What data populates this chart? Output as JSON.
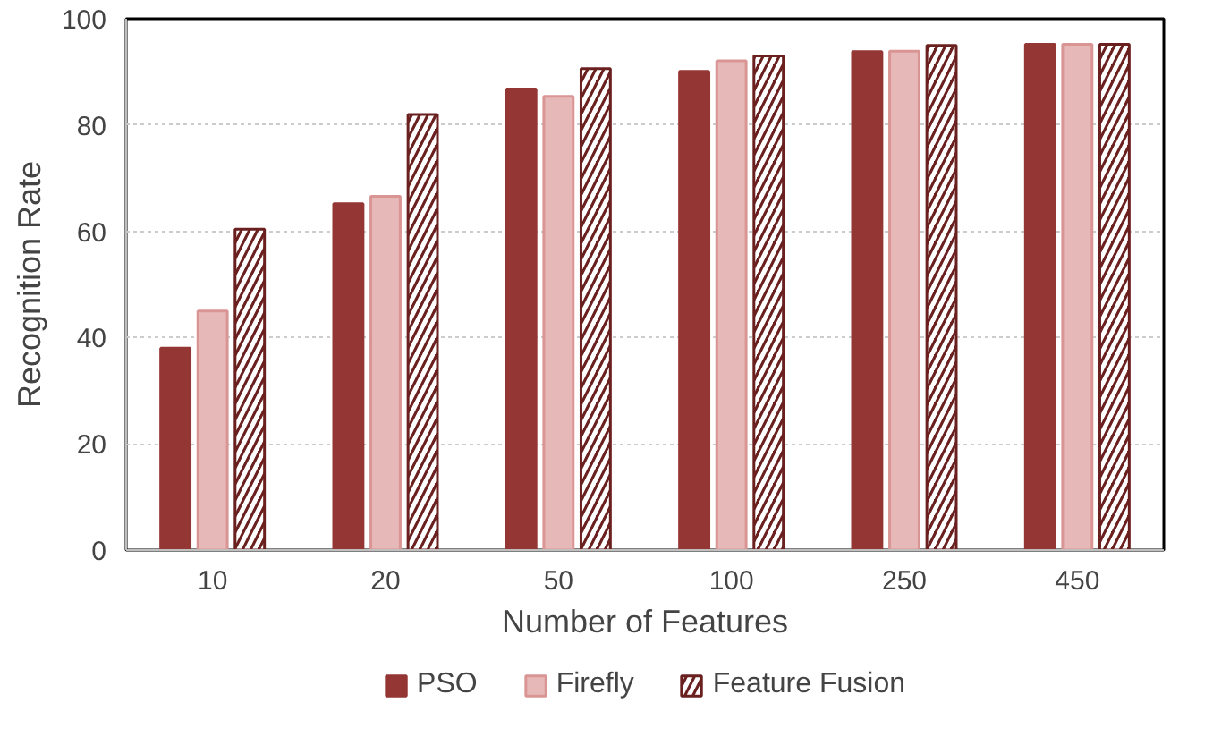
{
  "chart_data": {
    "type": "bar",
    "xlabel": "Number of Features",
    "ylabel": "Recognition Rate",
    "categories": [
      "10",
      "20",
      "50",
      "100",
      "250",
      "450"
    ],
    "series": [
      {
        "name": "PSO",
        "color": "#943634",
        "values": [
          38,
          65.2,
          86.8,
          90.1,
          93.8,
          95.2
        ]
      },
      {
        "name": "Firefly",
        "color": "#e6b9b8",
        "values": [
          45,
          66.6,
          85.4,
          92.1,
          93.9,
          95.2
        ]
      },
      {
        "name": "Feature Fusion",
        "color": "#6b2020",
        "values": [
          60.4,
          82,
          90.6,
          93,
          95,
          95.2
        ]
      }
    ],
    "ylim": [
      0,
      100
    ],
    "yticks": [
      0,
      20,
      40,
      60,
      80,
      100
    ],
    "grid": "y",
    "legend": "bottom"
  }
}
